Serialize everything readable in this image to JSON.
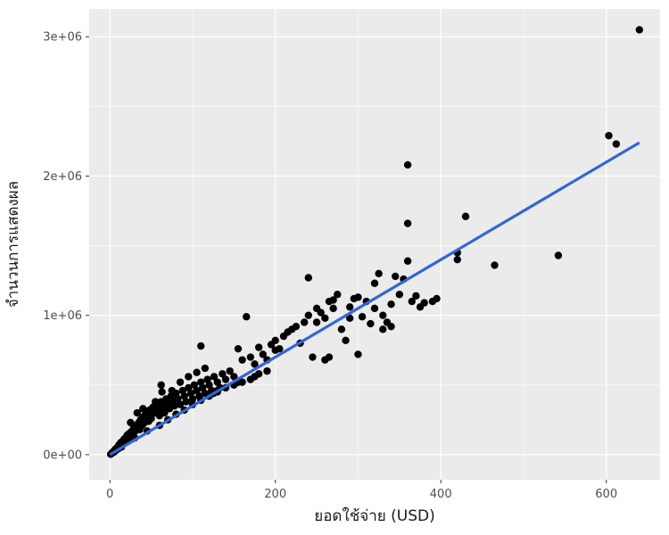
{
  "chart_data": {
    "type": "scatter",
    "title": "",
    "xlabel": "ยอดใช้จ่าย (USD)",
    "ylabel": "จำนวนการแสดงผล",
    "xlim": [
      -25,
      665
    ],
    "ylim": [
      -180000,
      3200000
    ],
    "x_ticks": [
      0,
      200,
      400,
      600
    ],
    "x_tick_labels": [
      "0",
      "200",
      "400",
      "600"
    ],
    "y_ticks": [
      0,
      1000000,
      2000000,
      3000000
    ],
    "y_tick_labels": [
      "0e+00",
      "1e+06",
      "2e+06",
      "3e+06"
    ],
    "x_minor_ticks": [
      100,
      300,
      500
    ],
    "y_minor_ticks": [
      500000,
      1500000,
      2500000
    ],
    "grid": true,
    "legend": "none",
    "colors": {
      "panel": "#ebebeb",
      "grid": "#ffffff",
      "points": "#000000",
      "fit_line": "#3366d6"
    },
    "series": [
      {
        "kind": "points",
        "points": [
          [
            1,
            3000
          ],
          [
            2,
            8000
          ],
          [
            3,
            15000
          ],
          [
            4,
            20000
          ],
          [
            5,
            18000
          ],
          [
            6,
            35000
          ],
          [
            7,
            30000
          ],
          [
            8,
            45000
          ],
          [
            9,
            50000
          ],
          [
            10,
            42000
          ],
          [
            11,
            70000
          ],
          [
            12,
            60000
          ],
          [
            13,
            85000
          ],
          [
            14,
            55000
          ],
          [
            15,
            95000
          ],
          [
            16,
            80000
          ],
          [
            17,
            110000
          ],
          [
            18,
            90000
          ],
          [
            19,
            120000
          ],
          [
            20,
            100000
          ],
          [
            21,
            140000
          ],
          [
            22,
            115000
          ],
          [
            23,
            150000
          ],
          [
            24,
            130000
          ],
          [
            25,
            160000
          ],
          [
            26,
            145000
          ],
          [
            27,
            170000
          ],
          [
            28,
            155000
          ],
          [
            29,
            200000
          ],
          [
            30,
            165000
          ],
          [
            31,
            180000
          ],
          [
            32,
            210000
          ],
          [
            33,
            195000
          ],
          [
            34,
            220000
          ],
          [
            35,
            230000
          ],
          [
            36,
            180000
          ],
          [
            37,
            250000
          ],
          [
            38,
            240000
          ],
          [
            39,
            210000
          ],
          [
            40,
            270000
          ],
          [
            41,
            260000
          ],
          [
            42,
            230000
          ],
          [
            43,
            290000
          ],
          [
            44,
            250000
          ],
          [
            45,
            300000
          ],
          [
            46,
            280000
          ],
          [
            47,
            240000
          ],
          [
            48,
            320000
          ],
          [
            49,
            290000
          ],
          [
            50,
            260000
          ],
          [
            52,
            340000
          ],
          [
            54,
            300000
          ],
          [
            56,
            360000
          ],
          [
            58,
            320000
          ],
          [
            60,
            280000
          ],
          [
            62,
            380000
          ],
          [
            64,
            340000
          ],
          [
            66,
            300000
          ],
          [
            68,
            400000
          ],
          [
            70,
            360000
          ],
          [
            72,
            330000
          ],
          [
            74,
            420000
          ],
          [
            76,
            380000
          ],
          [
            78,
            350000
          ],
          [
            80,
            440000
          ],
          [
            82,
            400000
          ],
          [
            85,
            360000
          ],
          [
            88,
            460000
          ],
          [
            90,
            420000
          ],
          [
            92,
            380000
          ],
          [
            95,
            480000
          ],
          [
            98,
            440000
          ],
          [
            100,
            400000
          ],
          [
            102,
            500000
          ],
          [
            105,
            460000
          ],
          [
            108,
            420000
          ],
          [
            110,
            520000
          ],
          [
            112,
            480000
          ],
          [
            115,
            440000
          ],
          [
            118,
            540000
          ],
          [
            120,
            500000
          ],
          [
            123,
            460000
          ],
          [
            126,
            560000
          ],
          [
            130,
            520000
          ],
          [
            133,
            480000
          ],
          [
            136,
            580000
          ],
          [
            140,
            540000
          ],
          [
            145,
            600000
          ],
          [
            150,
            560000
          ],
          [
            155,
            520000
          ],
          [
            25,
            230000
          ],
          [
            33,
            300000
          ],
          [
            40,
            330000
          ],
          [
            55,
            380000
          ],
          [
            63,
            450000
          ],
          [
            75,
            460000
          ],
          [
            85,
            520000
          ],
          [
            95,
            560000
          ],
          [
            105,
            590000
          ],
          [
            115,
            620000
          ],
          [
            30,
            120000
          ],
          [
            45,
            170000
          ],
          [
            60,
            210000
          ],
          [
            70,
            250000
          ],
          [
            80,
            290000
          ],
          [
            90,
            320000
          ],
          [
            100,
            360000
          ],
          [
            110,
            390000
          ],
          [
            120,
            420000
          ],
          [
            130,
            450000
          ],
          [
            62,
            500000
          ],
          [
            110,
            780000
          ],
          [
            155,
            760000
          ],
          [
            160,
            680000
          ],
          [
            165,
            990000
          ],
          [
            170,
            700000
          ],
          [
            175,
            650000
          ],
          [
            180,
            770000
          ],
          [
            185,
            720000
          ],
          [
            190,
            680000
          ],
          [
            195,
            790000
          ],
          [
            200,
            820000
          ],
          [
            205,
            760000
          ],
          [
            210,
            850000
          ],
          [
            215,
            880000
          ],
          [
            220,
            900000
          ],
          [
            225,
            920000
          ],
          [
            230,
            800000
          ],
          [
            235,
            950000
          ],
          [
            240,
            1000000
          ],
          [
            245,
            700000
          ],
          [
            250,
            1050000
          ],
          [
            255,
            1020000
          ],
          [
            260,
            980000
          ],
          [
            265,
            1100000
          ],
          [
            270,
            1110000
          ],
          [
            275,
            1150000
          ],
          [
            280,
            900000
          ],
          [
            285,
            820000
          ],
          [
            290,
            1060000
          ],
          [
            295,
            1120000
          ],
          [
            300,
            720000
          ],
          [
            305,
            990000
          ],
          [
            310,
            1100000
          ],
          [
            315,
            940000
          ],
          [
            320,
            1230000
          ],
          [
            325,
            1300000
          ],
          [
            330,
            1000000
          ],
          [
            335,
            950000
          ],
          [
            340,
            1080000
          ],
          [
            345,
            1280000
          ],
          [
            350,
            1150000
          ],
          [
            355,
            1260000
          ],
          [
            360,
            1390000
          ],
          [
            365,
            1100000
          ],
          [
            370,
            1140000
          ],
          [
            375,
            1060000
          ],
          [
            380,
            1090000
          ],
          [
            390,
            1100000
          ],
          [
            395,
            1120000
          ],
          [
            240,
            1270000
          ],
          [
            265,
            700000
          ],
          [
            260,
            680000
          ],
          [
            330,
            900000
          ],
          [
            340,
            920000
          ],
          [
            290,
            980000
          ],
          [
            300,
            1130000
          ],
          [
            320,
            1050000
          ],
          [
            250,
            950000
          ],
          [
            270,
            1050000
          ],
          [
            360,
            2080000
          ],
          [
            360,
            1660000
          ],
          [
            430,
            1710000
          ],
          [
            420,
            1450000
          ],
          [
            420,
            1400000
          ],
          [
            465,
            1360000
          ],
          [
            542,
            1430000
          ],
          [
            603,
            2290000
          ],
          [
            612,
            2230000
          ],
          [
            640,
            3050000
          ],
          [
            200,
            750000
          ],
          [
            190,
            600000
          ],
          [
            180,
            580000
          ],
          [
            175,
            560000
          ],
          [
            170,
            540000
          ],
          [
            160,
            520000
          ],
          [
            150,
            500000
          ],
          [
            140,
            480000
          ],
          [
            130,
            460000
          ],
          [
            125,
            440000
          ]
        ]
      },
      {
        "kind": "fit_line",
        "x": [
          0,
          640
        ],
        "y": [
          0,
          2240000
        ]
      }
    ]
  }
}
